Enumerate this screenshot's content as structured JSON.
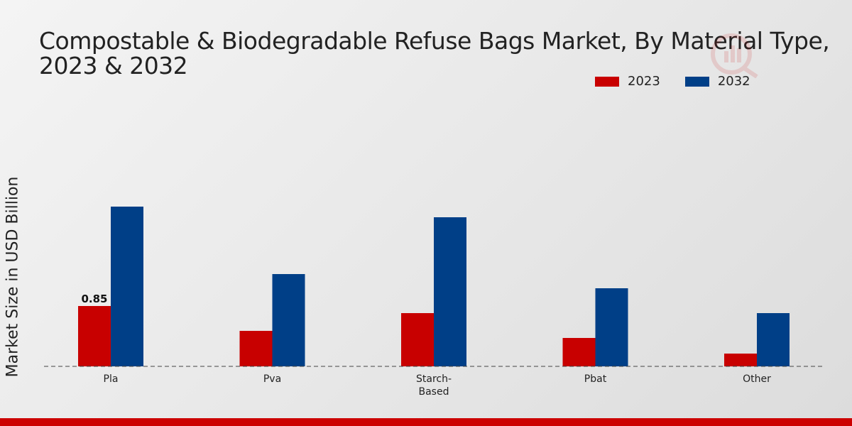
{
  "title": "Compostable & Biodegradable Refuse Bags Market, By Material Type, 2023 & 2032",
  "ylabel": "Market Size in USD Billion",
  "colors": {
    "s2023": "#c80000",
    "s2032": "#003f87",
    "bottom_bar": "#cc0000"
  },
  "chart_data": {
    "type": "bar",
    "categories": [
      "Pla",
      "Pva",
      "Starch-Based",
      "Pbat",
      "Other"
    ],
    "category_labels": [
      [
        "Pla"
      ],
      [
        "Pva"
      ],
      [
        "Starch-",
        "Based"
      ],
      [
        "Pbat"
      ],
      [
        "Other"
      ]
    ],
    "series": [
      {
        "name": "2023",
        "values": [
          0.85,
          0.5,
          0.75,
          0.4,
          0.18
        ]
      },
      {
        "name": "2032",
        "values": [
          2.25,
          1.3,
          2.1,
          1.1,
          0.75
        ]
      }
    ],
    "data_labels": [
      {
        "series": 0,
        "index": 0,
        "text": "0.85"
      }
    ],
    "ylabel": "Market Size in USD Billion",
    "ylim": [
      0,
      4.8
    ],
    "legend_position": "top-right",
    "grid": false
  }
}
